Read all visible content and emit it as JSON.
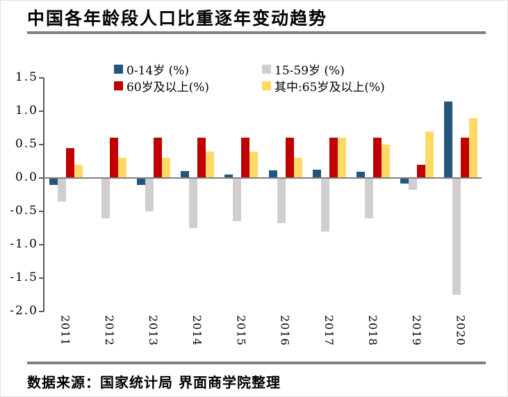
{
  "header": {
    "title": "中国各年龄段人口比重逐年变动趋势"
  },
  "chart_data": {
    "type": "bar",
    "title": "中国各年龄段人口比重逐年变动趋势",
    "categories": [
      "2011",
      "2012",
      "2013",
      "2014",
      "2015",
      "2016",
      "2017",
      "2018",
      "2019",
      "2020"
    ],
    "series": [
      {
        "name": "0-14岁 (%)",
        "color": "#24557C",
        "values": [
          -0.1,
          0.0,
          -0.1,
          0.1,
          0.05,
          0.11,
          0.13,
          0.09,
          -0.08,
          1.15
        ]
      },
      {
        "name": "15-59岁 (%)",
        "color": "#D0CECE",
        "values": [
          -0.35,
          -0.6,
          -0.5,
          -0.75,
          -0.65,
          -0.68,
          -0.8,
          -0.6,
          -0.18,
          -1.75
        ]
      },
      {
        "name": "60岁及以上(%)",
        "color": "#C00000",
        "values": [
          0.45,
          0.6,
          0.6,
          0.6,
          0.6,
          0.6,
          0.6,
          0.6,
          0.2,
          0.6
        ]
      },
      {
        "name": "其中:65岁及以上(%)",
        "color": "#FFD966",
        "values": [
          0.2,
          0.3,
          0.3,
          0.4,
          0.4,
          0.3,
          0.6,
          0.5,
          0.7,
          0.9
        ]
      }
    ],
    "ylim": [
      -2.0,
      1.5
    ],
    "ytick_step": 0.5,
    "ytick_labels": [
      "1.5",
      "1.0",
      "0.5",
      "0.0",
      "-0.5",
      "-1.0",
      "-1.5",
      "-2.0"
    ],
    "grid": false,
    "legend_position": "top",
    "axis_color": "#595959",
    "zero_line_color": "#808080"
  },
  "footer": {
    "source": "数据来源：国家统计局 界面商学院整理"
  },
  "colors": {
    "rule": "#808080",
    "border": "#E3E3E3"
  }
}
